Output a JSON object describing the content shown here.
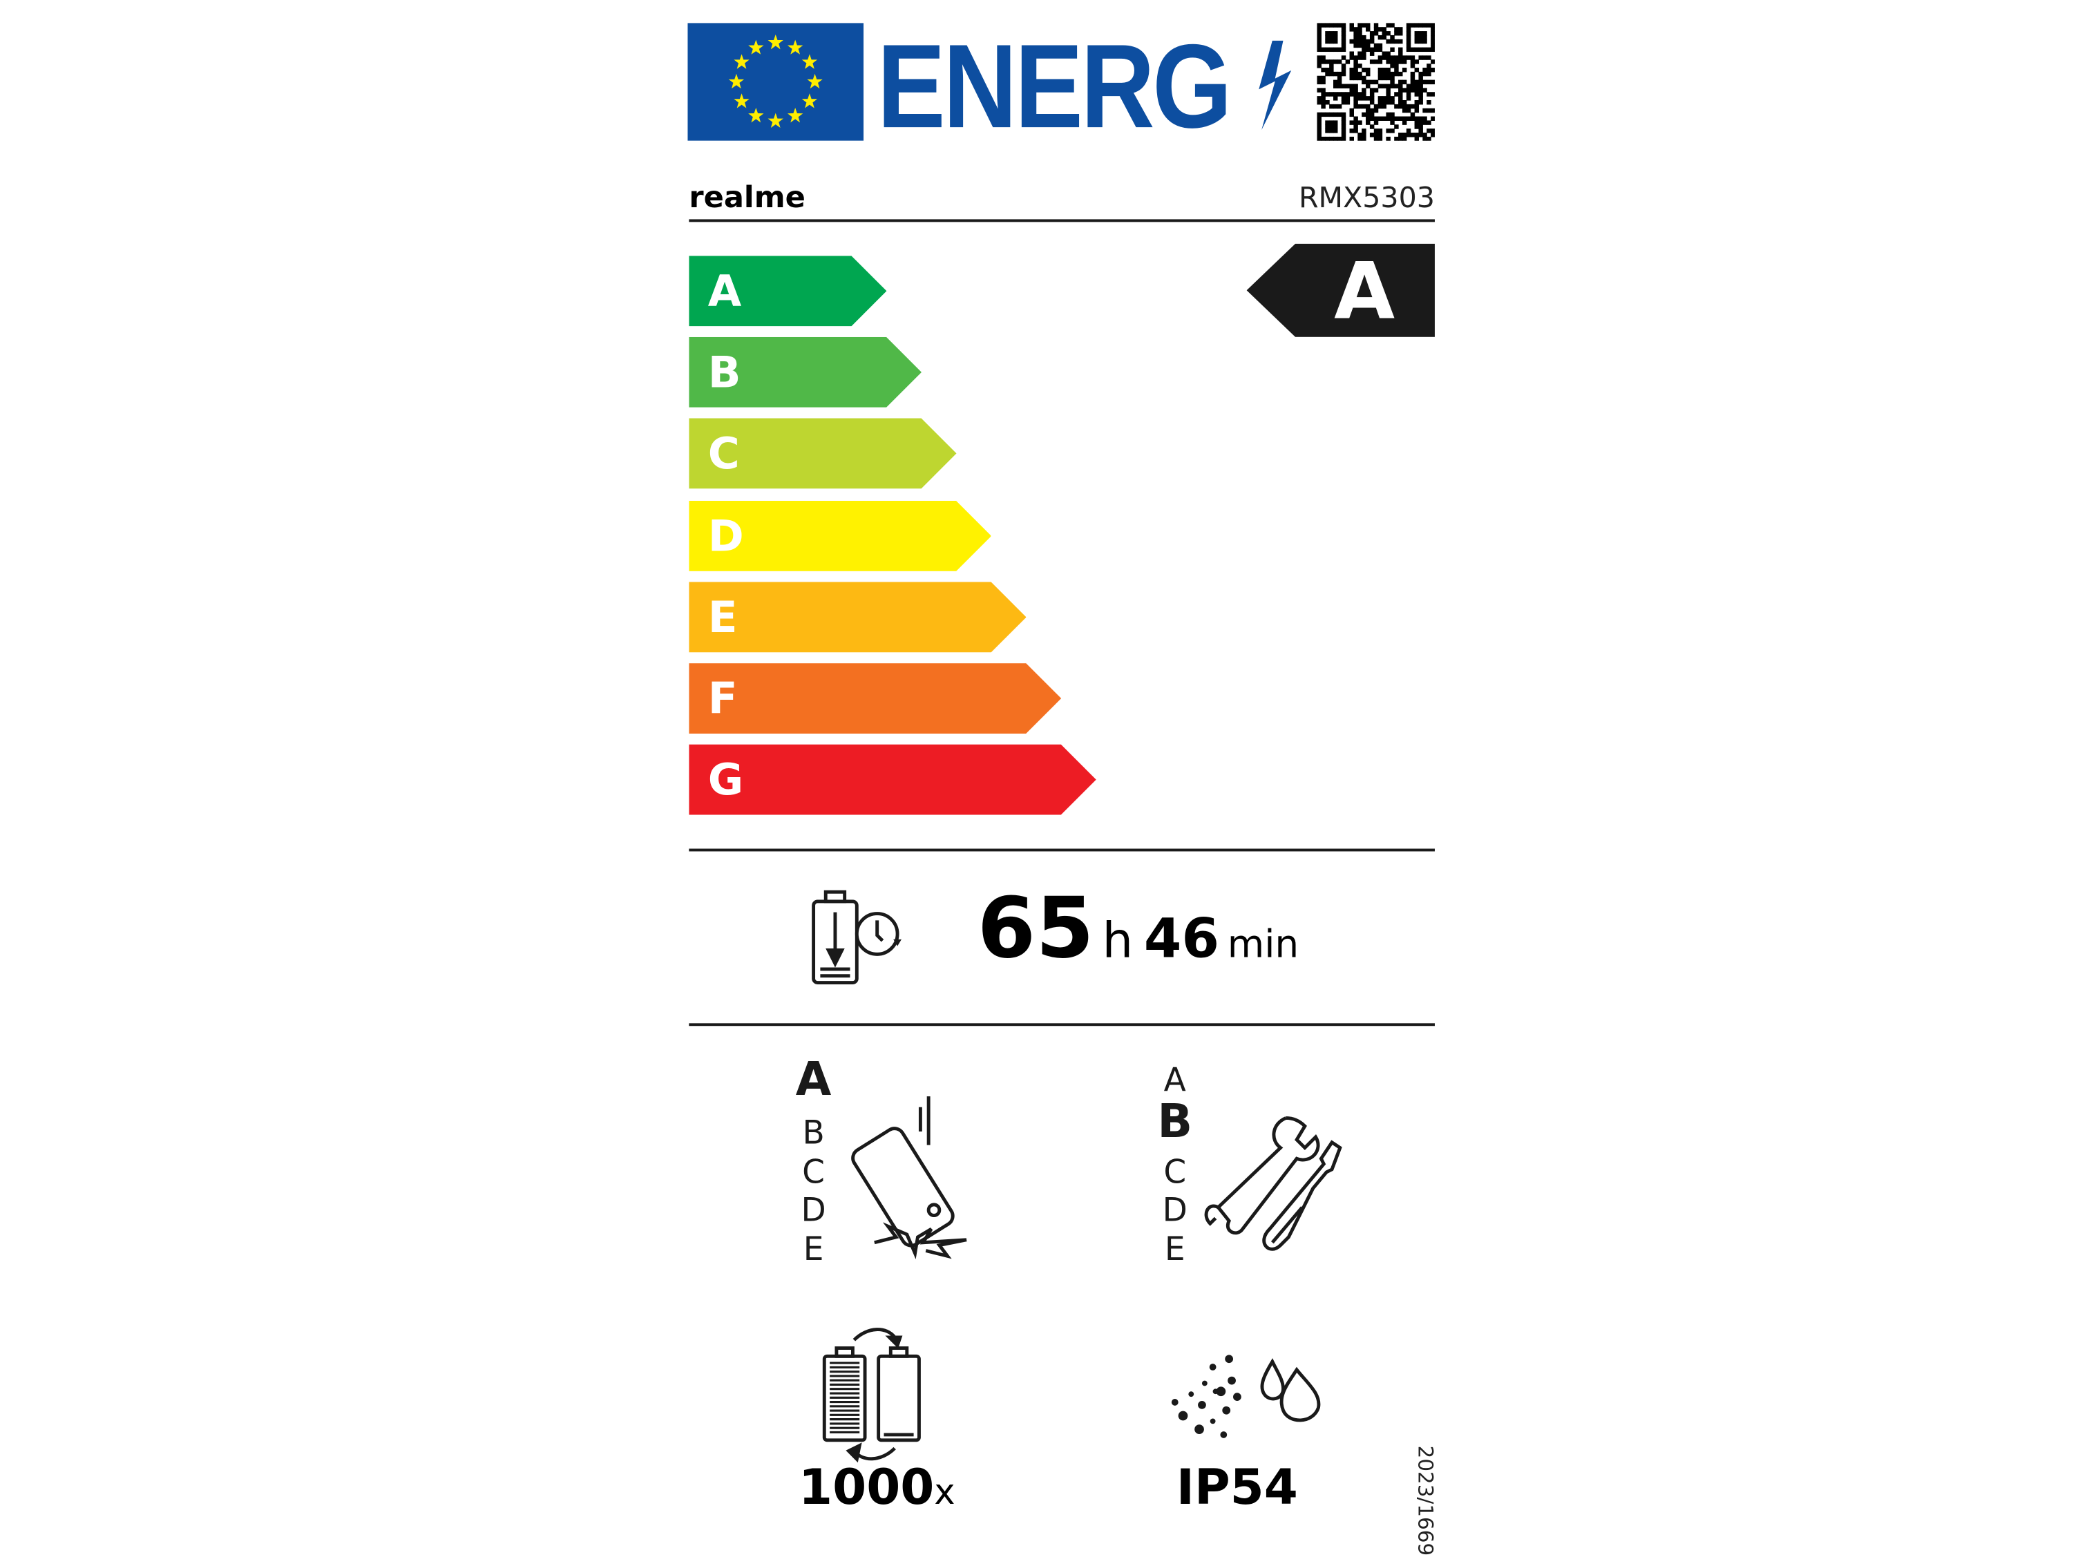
{
  "header": {
    "logo_text": "ENERG",
    "supplier": "realme",
    "model": "RMX5303"
  },
  "colors": {
    "eu_blue": "#0d4ea0",
    "star_yellow": "#ffed00",
    "A": "#00a650",
    "B": "#50b848",
    "C": "#bed630",
    "D": "#fff200",
    "E": "#fdb913",
    "F": "#f37021",
    "G": "#ed1c24"
  },
  "energy_scale": [
    "A",
    "B",
    "C",
    "D",
    "E",
    "F",
    "G"
  ],
  "energy_class": "A",
  "endurance": {
    "icon": "battery-clock-icon",
    "hours": "65",
    "hours_unit": "h",
    "minutes": "46",
    "minutes_unit": "min"
  },
  "drop_resistance": {
    "icon": "phone-drop-icon",
    "scale": [
      "A",
      "B",
      "C",
      "D",
      "E"
    ],
    "selected": "A"
  },
  "repairability": {
    "icon": "tools-icon",
    "scale": [
      "A",
      "B",
      "C",
      "D",
      "E"
    ],
    "selected": "B"
  },
  "battery_cycles": {
    "icon": "battery-cycle-icon",
    "value": "1000",
    "unit": "x"
  },
  "ingress": {
    "icon": "dust-water-icon",
    "value": "IP54"
  },
  "regulation": "2023/1669"
}
